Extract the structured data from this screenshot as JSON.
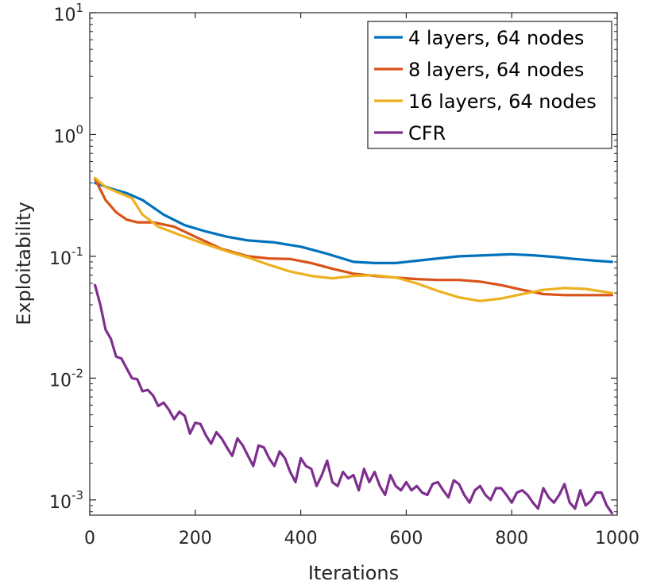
{
  "chart_data": {
    "type": "line",
    "title": "",
    "xlabel": "Iterations",
    "ylabel": "Exploitability",
    "xlim": [
      0,
      1000
    ],
    "ylim": [
      0.00075,
      10
    ],
    "yscale": "log",
    "grid": false,
    "legend_position": "top-right",
    "x_ticks": [
      0,
      200,
      400,
      600,
      800,
      1000
    ],
    "x_tick_labels": [
      "0",
      "200",
      "400",
      "600",
      "800",
      "1000"
    ],
    "y_ticks": [
      {
        "value": 0.001,
        "base": "10",
        "exp": "-3"
      },
      {
        "value": 0.01,
        "base": "10",
        "exp": "-2"
      },
      {
        "value": 0.1,
        "base": "10",
        "exp": "-1"
      },
      {
        "value": 1,
        "base": "10",
        "exp": "0"
      },
      {
        "value": 10,
        "base": "10",
        "exp": "1"
      }
    ],
    "series": [
      {
        "name": "4 layers, 64 nodes",
        "color": "#0072BD",
        "x": [
          10,
          40,
          70,
          100,
          140,
          180,
          220,
          260,
          300,
          350,
          400,
          450,
          500,
          540,
          580,
          620,
          660,
          700,
          750,
          800,
          840,
          880,
          920,
          960,
          990
        ],
        "y": [
          0.4,
          0.36,
          0.33,
          0.29,
          0.22,
          0.18,
          0.16,
          0.145,
          0.135,
          0.13,
          0.12,
          0.105,
          0.09,
          0.088,
          0.088,
          0.092,
          0.096,
          0.1,
          0.102,
          0.104,
          0.102,
          0.099,
          0.095,
          0.092,
          0.09
        ]
      },
      {
        "name": "8 layers, 64 nodes",
        "color": "#D95319",
        "x": [
          10,
          30,
          50,
          70,
          90,
          120,
          160,
          200,
          250,
          300,
          340,
          380,
          420,
          460,
          500,
          540,
          580,
          620,
          660,
          700,
          740,
          780,
          820,
          860,
          900,
          950,
          990
        ],
        "y": [
          0.43,
          0.29,
          0.23,
          0.2,
          0.19,
          0.19,
          0.175,
          0.145,
          0.115,
          0.1,
          0.096,
          0.095,
          0.088,
          0.079,
          0.072,
          0.069,
          0.067,
          0.065,
          0.064,
          0.064,
          0.062,
          0.058,
          0.053,
          0.049,
          0.048,
          0.048,
          0.048
        ]
      },
      {
        "name": "16 layers, 64 nodes",
        "color": "#EDB120",
        "x": [
          10,
          30,
          50,
          80,
          100,
          130,
          170,
          210,
          260,
          300,
          340,
          380,
          420,
          460,
          500,
          540,
          580,
          620,
          660,
          700,
          740,
          780,
          820,
          860,
          900,
          940,
          990
        ],
        "y": [
          0.44,
          0.37,
          0.34,
          0.3,
          0.22,
          0.175,
          0.15,
          0.13,
          0.11,
          0.098,
          0.085,
          0.075,
          0.069,
          0.066,
          0.069,
          0.07,
          0.067,
          0.06,
          0.052,
          0.046,
          0.043,
          0.045,
          0.049,
          0.053,
          0.055,
          0.054,
          0.05
        ]
      },
      {
        "name": "CFR",
        "color": "#7E2F8E",
        "x": [
          10,
          20,
          30,
          40,
          50,
          60,
          70,
          80,
          90,
          100,
          110,
          120,
          130,
          140,
          150,
          160,
          170,
          180,
          190,
          200,
          210,
          220,
          230,
          240,
          250,
          260,
          270,
          280,
          290,
          300,
          310,
          320,
          330,
          340,
          350,
          360,
          370,
          380,
          390,
          400,
          410,
          420,
          430,
          440,
          450,
          460,
          470,
          480,
          490,
          500,
          510,
          520,
          530,
          540,
          550,
          560,
          570,
          580,
          590,
          600,
          610,
          620,
          630,
          640,
          650,
          660,
          670,
          680,
          690,
          700,
          710,
          720,
          730,
          740,
          750,
          760,
          770,
          780,
          790,
          800,
          810,
          820,
          830,
          840,
          850,
          860,
          870,
          880,
          890,
          900,
          910,
          920,
          930,
          940,
          950,
          960,
          970,
          980,
          990
        ],
        "y": [
          0.058,
          0.04,
          0.025,
          0.021,
          0.015,
          0.0145,
          0.012,
          0.01,
          0.0098,
          0.0078,
          0.008,
          0.0072,
          0.0059,
          0.0063,
          0.0055,
          0.0046,
          0.0053,
          0.0049,
          0.0035,
          0.0043,
          0.0042,
          0.0034,
          0.0029,
          0.0036,
          0.0032,
          0.0027,
          0.0023,
          0.0032,
          0.0028,
          0.0023,
          0.0019,
          0.0028,
          0.0027,
          0.0022,
          0.0019,
          0.0025,
          0.0022,
          0.0017,
          0.0014,
          0.0022,
          0.0019,
          0.0018,
          0.0013,
          0.0016,
          0.0021,
          0.0014,
          0.0013,
          0.0017,
          0.0015,
          0.0016,
          0.0012,
          0.0018,
          0.0014,
          0.0017,
          0.0013,
          0.0011,
          0.0016,
          0.0013,
          0.0012,
          0.0014,
          0.0012,
          0.0013,
          0.00115,
          0.0011,
          0.00135,
          0.0014,
          0.0012,
          0.00105,
          0.00145,
          0.00135,
          0.0011,
          0.00095,
          0.0012,
          0.0013,
          0.0011,
          0.001,
          0.00125,
          0.00125,
          0.0011,
          0.00095,
          0.00115,
          0.0012,
          0.0011,
          0.00095,
          0.00085,
          0.00125,
          0.00105,
          0.00095,
          0.0011,
          0.00135,
          0.00095,
          0.00085,
          0.0012,
          0.0009,
          0.00098,
          0.00115,
          0.00115,
          0.0009,
          0.00078
        ]
      }
    ]
  }
}
